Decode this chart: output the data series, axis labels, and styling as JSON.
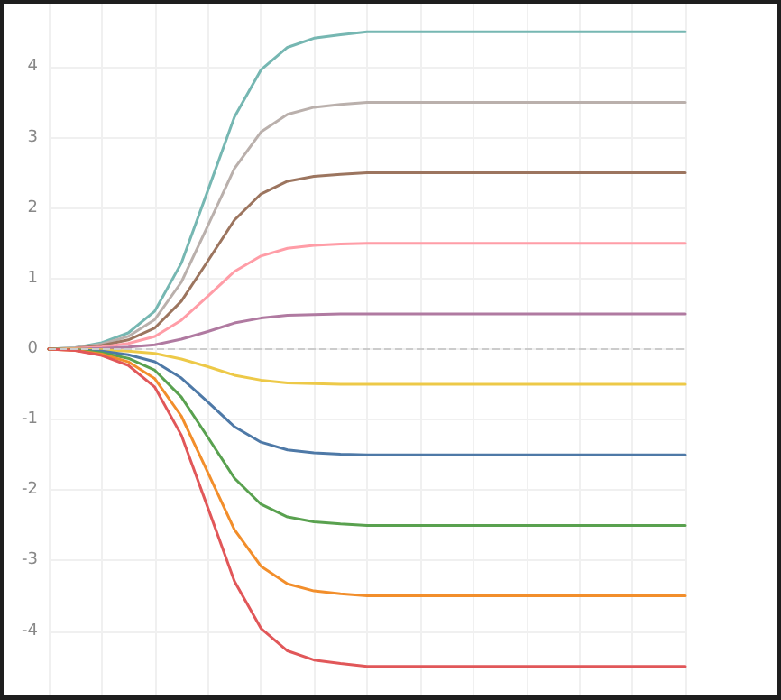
{
  "chart_data": {
    "type": "line",
    "categories": [
      null,
      null,
      null,
      null,
      null,
      null,
      null,
      null,
      null,
      null,
      null,
      null,
      null,
      null,
      null,
      null,
      null,
      null,
      null,
      null,
      null,
      null,
      null,
      null,
      null
    ],
    "ylim": [
      -4.9,
      4.9
    ],
    "yticks": [
      -4,
      -3,
      -2,
      -1,
      0,
      1,
      2,
      3,
      4
    ],
    "tick_labels": "y",
    "grid": true,
    "marker": "none",
    "line_style": "solid",
    "ref_lines": [
      {
        "axis": "y",
        "value": 0,
        "color": "#cccccc",
        "line_style": "dashed"
      }
    ],
    "series": [
      {
        "color": "#76b7b2",
        "values": [
          0,
          0.02,
          0.09,
          0.23,
          0.54,
          1.22,
          2.25,
          3.29,
          3.96,
          4.28,
          4.41,
          4.46,
          4.5,
          4.5,
          4.5,
          4.5,
          4.5,
          4.5,
          4.5,
          4.5,
          4.5,
          4.5,
          4.5,
          4.5,
          4.5
        ]
      },
      {
        "color": "#bab0ac",
        "values": [
          0,
          0.02,
          0.07,
          0.18,
          0.42,
          0.95,
          1.75,
          2.56,
          3.08,
          3.33,
          3.43,
          3.47,
          3.5,
          3.5,
          3.5,
          3.5,
          3.5,
          3.5,
          3.5,
          3.5,
          3.5,
          3.5,
          3.5,
          3.5,
          3.5
        ]
      },
      {
        "color": "#9c755f",
        "values": [
          0,
          0.01,
          0.05,
          0.13,
          0.3,
          0.68,
          1.25,
          1.83,
          2.2,
          2.38,
          2.45,
          2.48,
          2.5,
          2.5,
          2.5,
          2.5,
          2.5,
          2.5,
          2.5,
          2.5,
          2.5,
          2.5,
          2.5,
          2.5,
          2.5
        ]
      },
      {
        "color": "#ff9da7",
        "values": [
          0,
          0.01,
          0.03,
          0.08,
          0.18,
          0.41,
          0.75,
          1.1,
          1.32,
          1.43,
          1.47,
          1.49,
          1.5,
          1.5,
          1.5,
          1.5,
          1.5,
          1.5,
          1.5,
          1.5,
          1.5,
          1.5,
          1.5,
          1.5,
          1.5
        ]
      },
      {
        "color": "#b07aa1",
        "values": [
          0,
          0,
          0.01,
          0.03,
          0.06,
          0.14,
          0.25,
          0.37,
          0.44,
          0.48,
          0.49,
          0.5,
          0.5,
          0.5,
          0.5,
          0.5,
          0.5,
          0.5,
          0.5,
          0.5,
          0.5,
          0.5,
          0.5,
          0.5,
          0.5
        ]
      },
      {
        "color": "#edc948",
        "values": [
          0,
          0,
          -0.01,
          -0.03,
          -0.06,
          -0.14,
          -0.25,
          -0.37,
          -0.44,
          -0.48,
          -0.49,
          -0.5,
          -0.5,
          -0.5,
          -0.5,
          -0.5,
          -0.5,
          -0.5,
          -0.5,
          -0.5,
          -0.5,
          -0.5,
          -0.5,
          -0.5,
          -0.5
        ]
      },
      {
        "color": "#4e79a7",
        "values": [
          0,
          -0.01,
          -0.03,
          -0.08,
          -0.18,
          -0.41,
          -0.75,
          -1.1,
          -1.32,
          -1.43,
          -1.47,
          -1.49,
          -1.5,
          -1.5,
          -1.5,
          -1.5,
          -1.5,
          -1.5,
          -1.5,
          -1.5,
          -1.5,
          -1.5,
          -1.5,
          -1.5,
          -1.5
        ]
      },
      {
        "color": "#59a14f",
        "values": [
          0,
          -0.01,
          -0.05,
          -0.13,
          -0.3,
          -0.68,
          -1.25,
          -1.83,
          -2.2,
          -2.38,
          -2.45,
          -2.48,
          -2.5,
          -2.5,
          -2.5,
          -2.5,
          -2.5,
          -2.5,
          -2.5,
          -2.5,
          -2.5,
          -2.5,
          -2.5,
          -2.5,
          -2.5
        ]
      },
      {
        "color": "#f28e2b",
        "values": [
          0,
          -0.02,
          -0.07,
          -0.18,
          -0.42,
          -0.95,
          -1.75,
          -2.56,
          -3.08,
          -3.33,
          -3.43,
          -3.47,
          -3.5,
          -3.5,
          -3.5,
          -3.5,
          -3.5,
          -3.5,
          -3.5,
          -3.5,
          -3.5,
          -3.5,
          -3.5,
          -3.5,
          -3.5
        ]
      },
      {
        "color": "#e15759",
        "values": [
          0,
          -0.02,
          -0.09,
          -0.23,
          -0.54,
          -1.22,
          -2.25,
          -3.29,
          -3.96,
          -4.28,
          -4.41,
          -4.46,
          -4.5,
          -4.5,
          -4.5,
          -4.5,
          -4.5,
          -4.5,
          -4.5,
          -4.5,
          -4.5,
          -4.5,
          -4.5,
          -4.5,
          -4.5
        ]
      }
    ]
  }
}
